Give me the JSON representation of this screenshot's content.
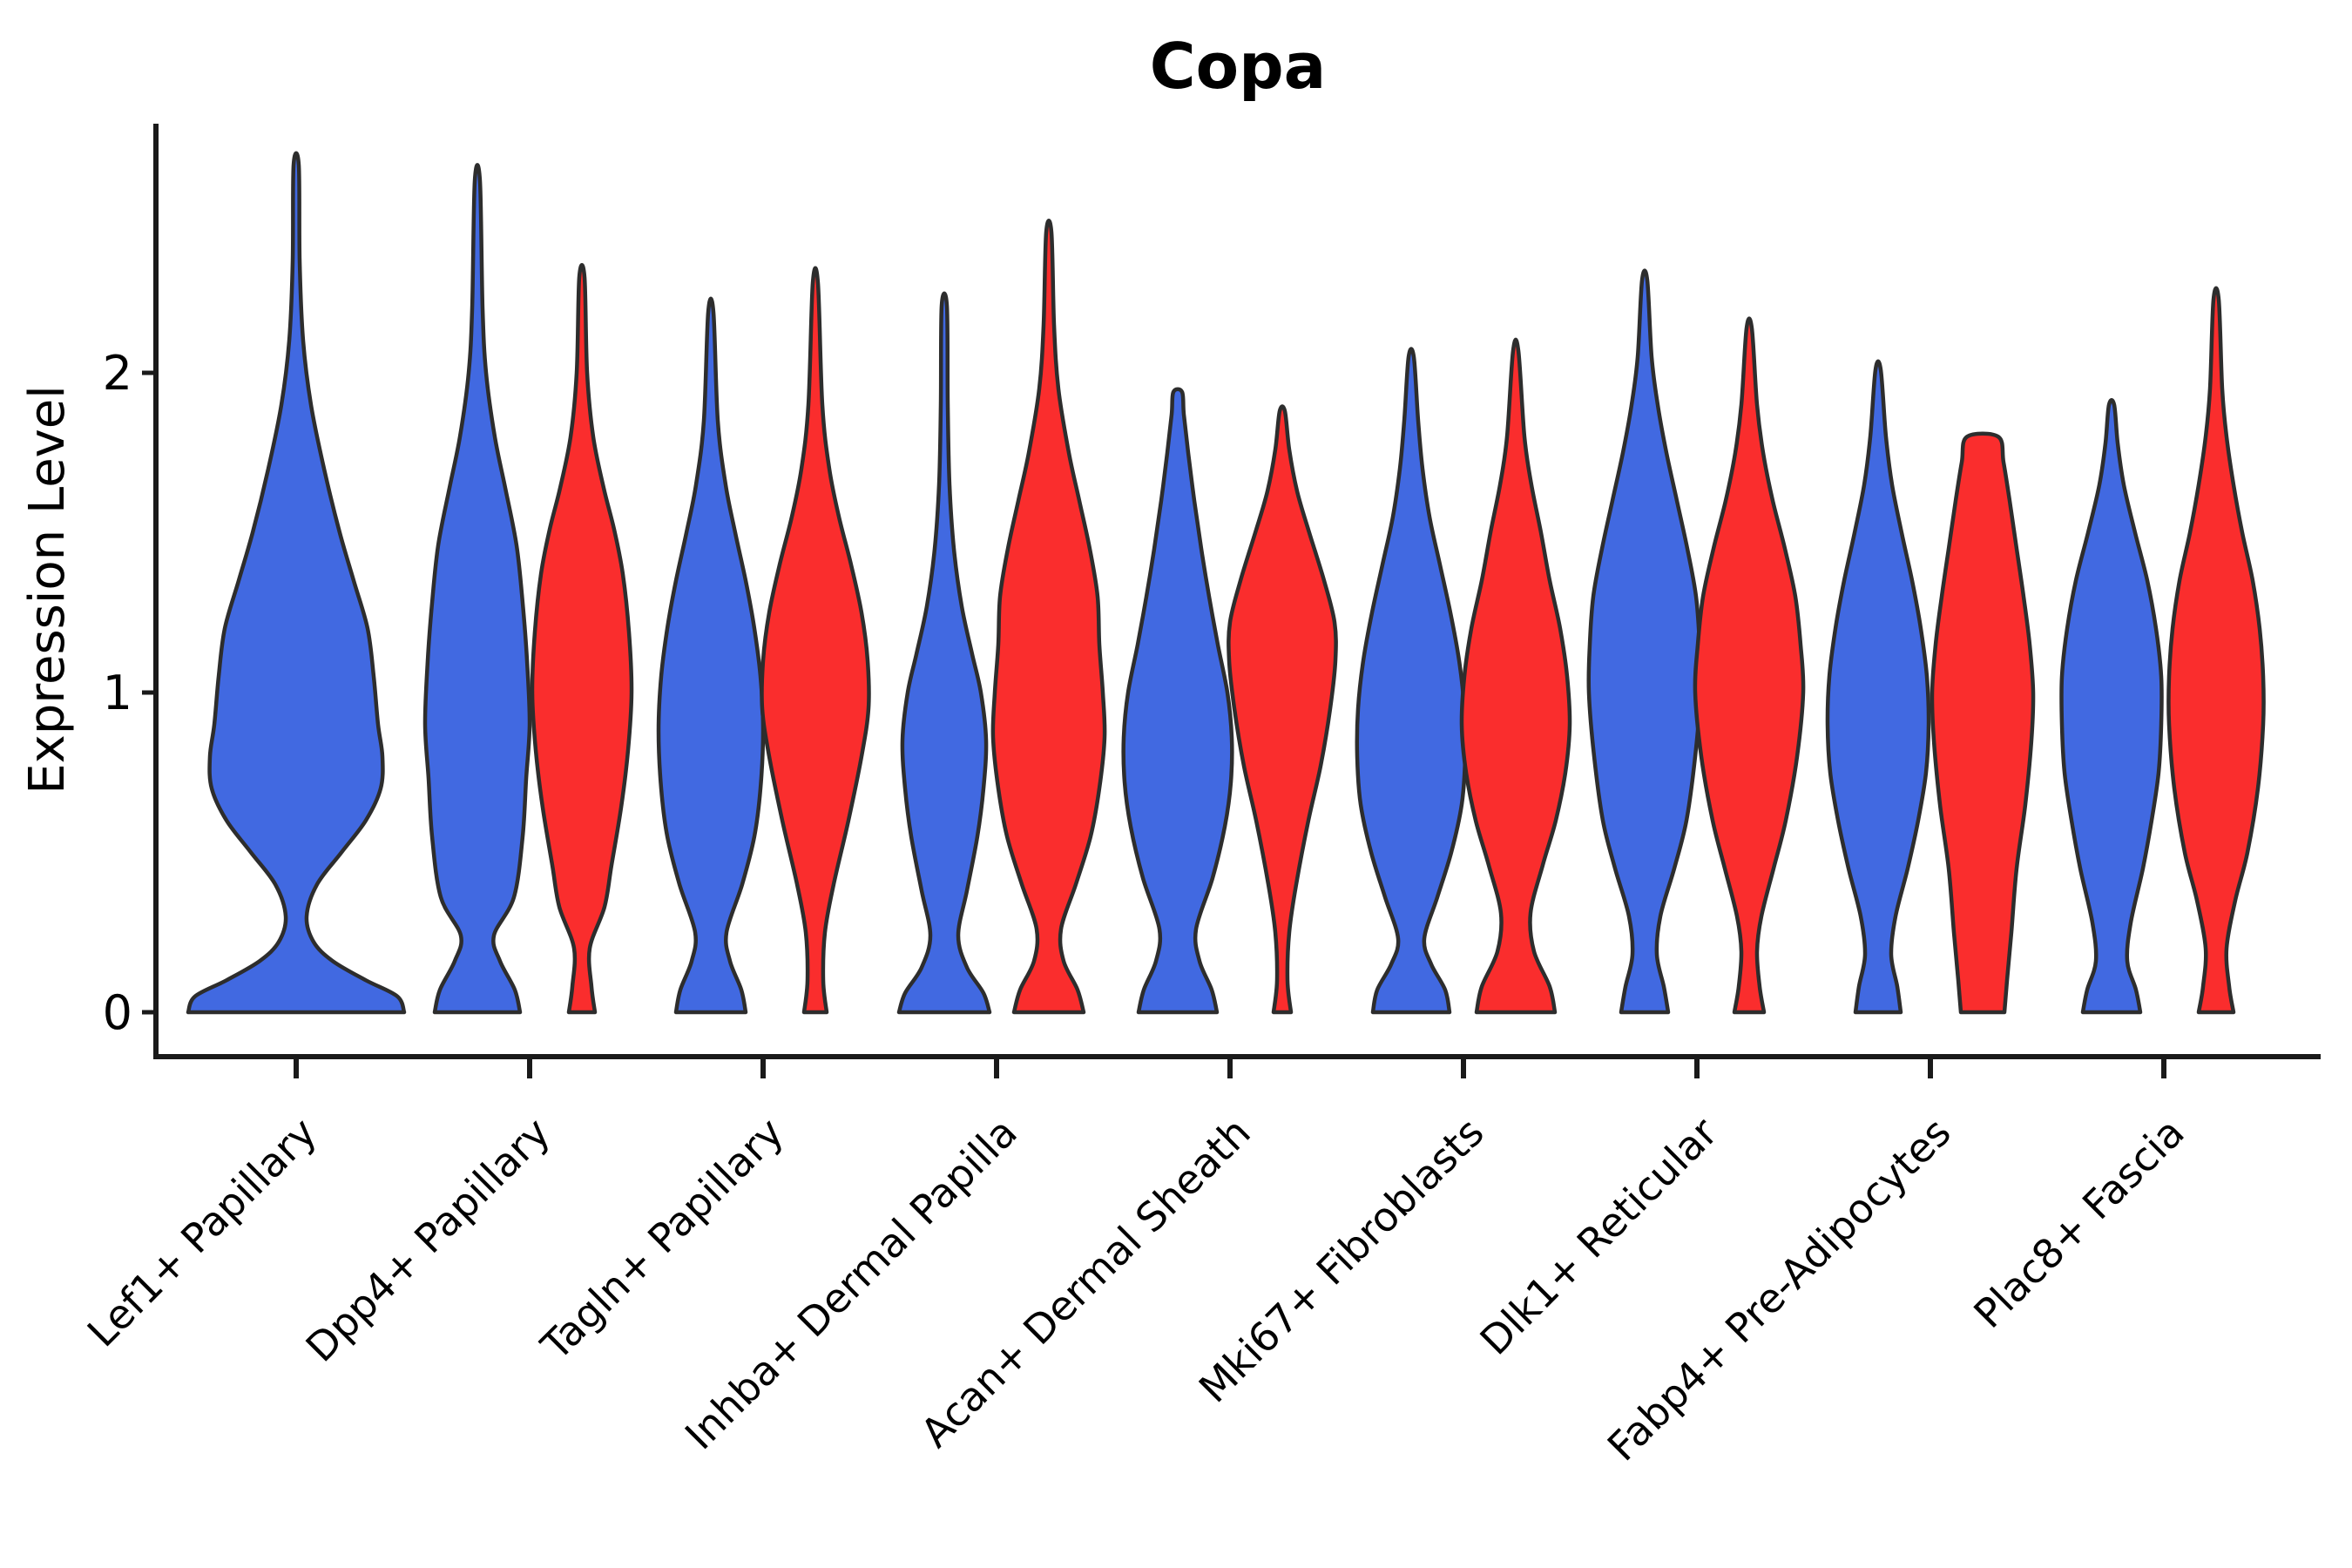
{
  "chart_data": {
    "type": "violin",
    "title": "Copa",
    "ylabel": "Expression Level",
    "xlabel": "",
    "ylim": [
      0,
      2.78
    ],
    "ytick_values": [
      0,
      1,
      2
    ],
    "ytick_labels": [
      "0",
      "1",
      "2"
    ],
    "grid": false,
    "legend_position": "none",
    "categories": [
      "Lef1+ Papillary",
      "Dpp4+ Papillary",
      "Tagln+ Papillary",
      "Inhba+ Dermal Papilla",
      "Acan+ Dermal Sheath",
      "Mki67+ Fibroblasts",
      "Dlk1+ Reticular",
      "Fabp4+ Pre-Adipocytes",
      "Plac8+ Fascia"
    ],
    "series": [
      {
        "id": "blue",
        "color": "#4169E1"
      },
      {
        "id": "red",
        "color": "#FA2D2D"
      }
    ],
    "outline_color": "#2D2D2D",
    "violins": [
      {
        "category_index": 0,
        "series": "blue",
        "max_expression": 2.65,
        "profile": [
          [
            0,
            124
          ],
          [
            0.05,
            116
          ],
          [
            0.1,
            80
          ],
          [
            0.16,
            42
          ],
          [
            0.22,
            20
          ],
          [
            0.3,
            12
          ],
          [
            0.4,
            24
          ],
          [
            0.5,
            52
          ],
          [
            0.6,
            80
          ],
          [
            0.7,
            97
          ],
          [
            0.8,
            99
          ],
          [
            0.9,
            94
          ],
          [
            1.05,
            89
          ],
          [
            1.2,
            82
          ],
          [
            1.35,
            66
          ],
          [
            1.5,
            50
          ],
          [
            1.7,
            32
          ],
          [
            1.9,
            17
          ],
          [
            2.1,
            8
          ],
          [
            2.35,
            4
          ],
          [
            2.65,
            3
          ]
        ]
      },
      {
        "category_index": 1,
        "series": "blue",
        "max_expression": 2.6,
        "profile": [
          [
            0,
            49
          ],
          [
            0.07,
            43
          ],
          [
            0.16,
            26
          ],
          [
            0.24,
            19
          ],
          [
            0.36,
            42
          ],
          [
            0.55,
            52
          ],
          [
            0.73,
            56
          ],
          [
            0.9,
            60
          ],
          [
            1.1,
            57
          ],
          [
            1.28,
            52
          ],
          [
            1.46,
            45
          ],
          [
            1.64,
            32
          ],
          [
            1.8,
            20
          ],
          [
            2.0,
            10
          ],
          [
            2.2,
            6
          ],
          [
            2.6,
            3
          ]
        ]
      },
      {
        "category_index": 1,
        "series": "red",
        "max_expression": 2.3,
        "profile": [
          [
            0,
            15
          ],
          [
            0.08,
            11
          ],
          [
            0.2,
            9
          ],
          [
            0.33,
            26
          ],
          [
            0.46,
            34
          ],
          [
            0.64,
            45
          ],
          [
            0.82,
            53
          ],
          [
            1.0,
            57
          ],
          [
            1.19,
            54
          ],
          [
            1.37,
            47
          ],
          [
            1.51,
            37
          ],
          [
            1.64,
            25
          ],
          [
            1.8,
            13
          ],
          [
            2.0,
            6
          ],
          [
            2.3,
            3
          ]
        ]
      },
      {
        "category_index": 2,
        "series": "blue",
        "max_expression": 2.19,
        "profile": [
          [
            0,
            40
          ],
          [
            0.07,
            35
          ],
          [
            0.16,
            22
          ],
          [
            0.25,
            18
          ],
          [
            0.4,
            36
          ],
          [
            0.55,
            50
          ],
          [
            0.7,
            57
          ],
          [
            0.88,
            60
          ],
          [
            1.05,
            57
          ],
          [
            1.2,
            50
          ],
          [
            1.35,
            40
          ],
          [
            1.5,
            28
          ],
          [
            1.65,
            17
          ],
          [
            1.85,
            8
          ],
          [
            2.19,
            3
          ]
        ]
      },
      {
        "category_index": 2,
        "series": "red",
        "max_expression": 2.28,
        "profile": [
          [
            0,
            13
          ],
          [
            0.1,
            9
          ],
          [
            0.25,
            11
          ],
          [
            0.4,
            21
          ],
          [
            0.6,
            38
          ],
          [
            0.8,
            53
          ],
          [
            0.95,
            61
          ],
          [
            1.1,
            60
          ],
          [
            1.25,
            53
          ],
          [
            1.4,
            41
          ],
          [
            1.55,
            27
          ],
          [
            1.7,
            16
          ],
          [
            1.9,
            8
          ],
          [
            2.28,
            3
          ]
        ]
      },
      {
        "category_index": 3,
        "series": "blue",
        "max_expression": 2.21,
        "profile": [
          [
            0,
            52
          ],
          [
            0.06,
            45
          ],
          [
            0.14,
            26
          ],
          [
            0.24,
            16
          ],
          [
            0.38,
            26
          ],
          [
            0.55,
            38
          ],
          [
            0.7,
            45
          ],
          [
            0.85,
            48
          ],
          [
            1.0,
            42
          ],
          [
            1.12,
            32
          ],
          [
            1.27,
            20
          ],
          [
            1.45,
            11
          ],
          [
            1.65,
            6
          ],
          [
            1.9,
            4
          ],
          [
            2.21,
            3
          ]
        ]
      },
      {
        "category_index": 3,
        "series": "red",
        "max_expression": 2.44,
        "profile": [
          [
            0,
            40
          ],
          [
            0.07,
            33
          ],
          [
            0.16,
            17
          ],
          [
            0.26,
            14
          ],
          [
            0.4,
            31
          ],
          [
            0.55,
            48
          ],
          [
            0.7,
            58
          ],
          [
            0.86,
            64
          ],
          [
            1.0,
            62
          ],
          [
            1.15,
            58
          ],
          [
            1.3,
            56
          ],
          [
            1.45,
            47
          ],
          [
            1.6,
            35
          ],
          [
            1.75,
            23
          ],
          [
            1.95,
            11
          ],
          [
            2.15,
            6
          ],
          [
            2.44,
            3
          ]
        ]
      },
      {
        "category_index": 4,
        "series": "blue",
        "max_expression": 1.94,
        "profile": [
          [
            0,
            45
          ],
          [
            0.07,
            39
          ],
          [
            0.16,
            25
          ],
          [
            0.26,
            21
          ],
          [
            0.42,
            40
          ],
          [
            0.58,
            54
          ],
          [
            0.72,
            61
          ],
          [
            0.86,
            62
          ],
          [
            1.0,
            57
          ],
          [
            1.15,
            46
          ],
          [
            1.3,
            36
          ],
          [
            1.45,
            27
          ],
          [
            1.6,
            19
          ],
          [
            1.75,
            12
          ],
          [
            1.87,
            7
          ],
          [
            1.94,
            5
          ]
        ]
      },
      {
        "category_index": 4,
        "series": "red",
        "max_expression": 1.88,
        "profile": [
          [
            0,
            10
          ],
          [
            0.1,
            6
          ],
          [
            0.25,
            8
          ],
          [
            0.4,
            16
          ],
          [
            0.6,
            30
          ],
          [
            0.77,
            44
          ],
          [
            0.95,
            55
          ],
          [
            1.1,
            61
          ],
          [
            1.22,
            60
          ],
          [
            1.35,
            48
          ],
          [
            1.5,
            31
          ],
          [
            1.63,
            17
          ],
          [
            1.76,
            8
          ],
          [
            1.88,
            3
          ]
        ]
      },
      {
        "category_index": 5,
        "series": "blue",
        "max_expression": 2.05,
        "profile": [
          [
            0,
            44
          ],
          [
            0.07,
            39
          ],
          [
            0.15,
            23
          ],
          [
            0.23,
            15
          ],
          [
            0.36,
            30
          ],
          [
            0.5,
            46
          ],
          [
            0.65,
            58
          ],
          [
            0.8,
            62
          ],
          [
            0.95,
            61
          ],
          [
            1.1,
            55
          ],
          [
            1.25,
            45
          ],
          [
            1.4,
            33
          ],
          [
            1.55,
            21
          ],
          [
            1.7,
            13
          ],
          [
            1.85,
            8
          ],
          [
            2.05,
            3
          ]
        ]
      },
      {
        "category_index": 5,
        "series": "red",
        "max_expression": 2.07,
        "profile": [
          [
            0,
            45
          ],
          [
            0.08,
            39
          ],
          [
            0.19,
            21
          ],
          [
            0.31,
            17
          ],
          [
            0.46,
            31
          ],
          [
            0.6,
            46
          ],
          [
            0.75,
            57
          ],
          [
            0.9,
            62
          ],
          [
            1.05,
            59
          ],
          [
            1.2,
            51
          ],
          [
            1.35,
            39
          ],
          [
            1.5,
            29
          ],
          [
            1.65,
            18
          ],
          [
            1.8,
            10
          ],
          [
            2.07,
            3
          ]
        ]
      },
      {
        "category_index": 6,
        "series": "blue",
        "max_expression": 2.29,
        "profile": [
          [
            0,
            27
          ],
          [
            0.08,
            22
          ],
          [
            0.18,
            14
          ],
          [
            0.3,
            18
          ],
          [
            0.45,
            34
          ],
          [
            0.6,
            48
          ],
          [
            0.8,
            58
          ],
          [
            1.0,
            64
          ],
          [
            1.15,
            63
          ],
          [
            1.3,
            59
          ],
          [
            1.45,
            49
          ],
          [
            1.6,
            37
          ],
          [
            1.75,
            25
          ],
          [
            1.9,
            15
          ],
          [
            2.05,
            8
          ],
          [
            2.29,
            3
          ]
        ]
      },
      {
        "category_index": 6,
        "series": "red",
        "max_expression": 2.14,
        "profile": [
          [
            0,
            17
          ],
          [
            0.08,
            12
          ],
          [
            0.19,
            9
          ],
          [
            0.3,
            14
          ],
          [
            0.45,
            28
          ],
          [
            0.6,
            42
          ],
          [
            0.8,
            55
          ],
          [
            1.0,
            62
          ],
          [
            1.15,
            59
          ],
          [
            1.3,
            53
          ],
          [
            1.45,
            41
          ],
          [
            1.6,
            27
          ],
          [
            1.75,
            16
          ],
          [
            1.9,
            9
          ],
          [
            2.14,
            3
          ]
        ]
      },
      {
        "category_index": 7,
        "series": "blue",
        "max_expression": 2.01,
        "profile": [
          [
            0,
            26
          ],
          [
            0.08,
            22
          ],
          [
            0.18,
            15
          ],
          [
            0.3,
            20
          ],
          [
            0.45,
            34
          ],
          [
            0.6,
            46
          ],
          [
            0.75,
            55
          ],
          [
            0.9,
            58
          ],
          [
            1.05,
            56
          ],
          [
            1.2,
            49
          ],
          [
            1.35,
            39
          ],
          [
            1.5,
            27
          ],
          [
            1.65,
            16
          ],
          [
            1.8,
            9
          ],
          [
            2.01,
            3
          ]
        ]
      },
      {
        "category_index": 7,
        "series": "red",
        "max_expression": 1.8,
        "profile": [
          [
            0,
            25
          ],
          [
            0.1,
            28
          ],
          [
            0.25,
            33
          ],
          [
            0.45,
            39
          ],
          [
            0.65,
            49
          ],
          [
            0.85,
            56
          ],
          [
            1.0,
            58
          ],
          [
            1.15,
            54
          ],
          [
            1.3,
            47
          ],
          [
            1.45,
            39
          ],
          [
            1.6,
            31
          ],
          [
            1.72,
            24
          ],
          [
            1.8,
            18
          ]
        ]
      },
      {
        "category_index": 8,
        "series": "blue",
        "max_expression": 1.9,
        "profile": [
          [
            0,
            33
          ],
          [
            0.07,
            28
          ],
          [
            0.16,
            18
          ],
          [
            0.28,
            22
          ],
          [
            0.45,
            36
          ],
          [
            0.6,
            46
          ],
          [
            0.75,
            54
          ],
          [
            0.9,
            57
          ],
          [
            1.05,
            57
          ],
          [
            1.2,
            51
          ],
          [
            1.35,
            41
          ],
          [
            1.5,
            27
          ],
          [
            1.65,
            14
          ],
          [
            1.78,
            7
          ],
          [
            1.9,
            3
          ]
        ]
      },
      {
        "category_index": 8,
        "series": "red",
        "max_expression": 2.23,
        "profile": [
          [
            0,
            20
          ],
          [
            0.08,
            15
          ],
          [
            0.2,
            12
          ],
          [
            0.35,
            22
          ],
          [
            0.5,
            36
          ],
          [
            0.7,
            48
          ],
          [
            0.9,
            54
          ],
          [
            1.05,
            54
          ],
          [
            1.2,
            50
          ],
          [
            1.35,
            42
          ],
          [
            1.5,
            30
          ],
          [
            1.65,
            20
          ],
          [
            1.8,
            12
          ],
          [
            1.95,
            7
          ],
          [
            2.23,
            3
          ]
        ]
      }
    ]
  }
}
